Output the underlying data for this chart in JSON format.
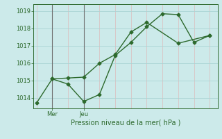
{
  "line1_x": [
    0,
    1,
    2,
    3,
    4,
    5,
    6,
    7,
    8,
    9,
    10,
    11
  ],
  "line1_y": [
    1013.7,
    1015.1,
    1014.8,
    1013.8,
    1014.2,
    1016.45,
    1017.2,
    1018.1,
    1018.85,
    1018.8,
    1017.2,
    1017.6
  ],
  "line2_x": [
    1,
    2,
    3,
    4,
    5,
    6,
    7,
    9,
    11
  ],
  "line2_y": [
    1015.1,
    1015.15,
    1015.2,
    1016.0,
    1016.5,
    1017.8,
    1018.35,
    1017.15,
    1017.6
  ],
  "line_color": "#2d6a2d",
  "bg_color": "#cceaea",
  "grid_color": "#aad4d4",
  "minor_grid_color": "#ddbcbc",
  "axis_color": "#2d6a2d",
  "xlabel": "Pression niveau de la mer( hPa )",
  "xlabel_color": "#2d6a2d",
  "tick_color": "#2d6a2d",
  "xtick_labels": [
    "Mer",
    "Jeu"
  ],
  "xtick_positions": [
    1,
    3
  ],
  "ylim": [
    1013.4,
    1019.4
  ],
  "yticks": [
    1014,
    1015,
    1016,
    1017,
    1018,
    1019
  ],
  "vline_positions": [
    1,
    3
  ],
  "vline_color": "#707070",
  "marker": "D",
  "markersize": 2.5,
  "linewidth": 1.0,
  "xlim": [
    -0.2,
    11.5
  ]
}
